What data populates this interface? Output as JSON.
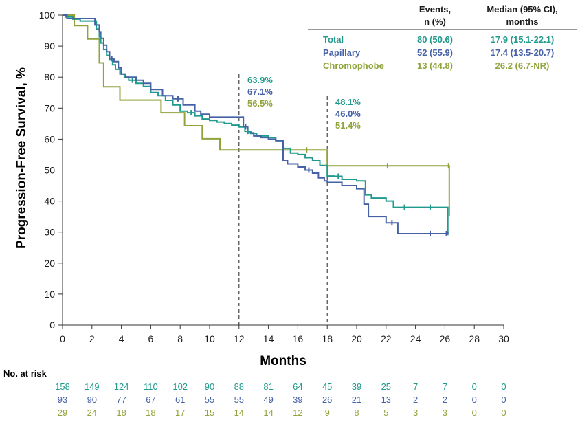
{
  "chart_data": {
    "type": "line",
    "xlabel": "Months",
    "ylabel": "Progression-Free Survival, %",
    "xlim": [
      0,
      30
    ],
    "ylim": [
      0,
      100
    ],
    "x_ticks": [
      "0",
      "2",
      "4",
      "6",
      "8",
      "10",
      "12",
      "14",
      "16",
      "18",
      "20",
      "22",
      "24",
      "26",
      "28",
      "30"
    ],
    "y_ticks": [
      "0",
      "10",
      "20",
      "30",
      "40",
      "50",
      "60",
      "70",
      "80",
      "90",
      "100"
    ],
    "legend": {
      "headers": [
        "Events,",
        "n (%)",
        "Median (95% CI),",
        "months"
      ],
      "rows": [
        {
          "name": "Total",
          "events": "80 (50.6)",
          "median": "17.9 (15.1-22.1)",
          "color": "#1f9a8c"
        },
        {
          "name": "Papillary",
          "events": "52 (55.9)",
          "median": "17.4 (13.5-20.7)",
          "color": "#4662a6"
        },
        {
          "name": "Chromophobe",
          "events": "13 (44.8)",
          "median": "26.2 (6.7-NR)",
          "color": "#8fa43a"
        }
      ]
    },
    "landmarks": [
      {
        "x": 12,
        "labels": [
          "63.9%",
          "67.1%",
          "56.5%"
        ]
      },
      {
        "x": 18,
        "labels": [
          "48.1%",
          "46.0%",
          "51.4%"
        ]
      }
    ],
    "series": [
      {
        "name": "Total",
        "color": "#1f9a8c",
        "x": [
          0,
          0.2,
          0.7,
          1.2,
          2.3,
          2.5,
          2.6,
          2.8,
          3.0,
          3.2,
          3.4,
          3.6,
          3.9,
          4.2,
          4.5,
          5.0,
          5.5,
          6.0,
          6.5,
          7.0,
          7.5,
          8.0,
          8.5,
          9.0,
          9.5,
          10.0,
          10.5,
          11.0,
          11.5,
          12.0,
          12.4,
          12.8,
          13.2,
          14.0,
          14.5,
          15.0,
          15.5,
          16.0,
          16.5,
          17.0,
          17.5,
          18.0,
          18.5,
          19.0,
          20.0,
          20.6,
          21.0,
          22.0,
          22.5,
          24.0,
          26.0,
          26.2
        ],
        "y": [
          100,
          99.4,
          98.7,
          98.1,
          95.5,
          93.0,
          91.0,
          88.9,
          87.0,
          85.5,
          84.0,
          82.5,
          81.0,
          80.0,
          79.0,
          78.0,
          77.0,
          75.0,
          74.0,
          72.5,
          71.0,
          69.0,
          68.5,
          67.5,
          66.5,
          66.0,
          65.5,
          65.0,
          64.5,
          63.9,
          62.5,
          61.8,
          61.0,
          60.5,
          59.5,
          57.0,
          55.5,
          55.0,
          54.0,
          53.0,
          51.5,
          48.1,
          48.0,
          47.0,
          46.5,
          42.0,
          41.0,
          40.0,
          38.0,
          38.0,
          38.0,
          29.0
        ]
      },
      {
        "name": "Papillary",
        "color": "#4662a6",
        "x": [
          0,
          0.3,
          2.2,
          2.5,
          2.6,
          2.8,
          3.0,
          3.2,
          3.5,
          3.8,
          4.0,
          4.3,
          5.0,
          5.5,
          6.0,
          6.8,
          7.5,
          8.2,
          9.0,
          9.4,
          10.0,
          12.0,
          12.3,
          12.6,
          13.0,
          13.5,
          14.0,
          14.5,
          15.0,
          15.3,
          16.0,
          16.5,
          17.0,
          17.4,
          17.8,
          18.0,
          19.0,
          20.0,
          20.5,
          20.8,
          22.0,
          22.8,
          24.0,
          26.0,
          26.2
        ],
        "y": [
          100,
          98.9,
          96.8,
          94.6,
          92.5,
          90.3,
          88.2,
          86.0,
          85.0,
          83.0,
          81.0,
          80.0,
          79.0,
          78.0,
          76.0,
          74.0,
          73.0,
          71.0,
          69.0,
          68.0,
          67.1,
          67.1,
          64.0,
          62.0,
          61.0,
          60.5,
          60.0,
          59.5,
          53.0,
          52.0,
          51.0,
          50.0,
          49.0,
          47.5,
          46.5,
          46.0,
          45.0,
          44.0,
          39.0,
          35.0,
          33.0,
          29.5,
          29.5,
          29.5,
          30.0
        ]
      },
      {
        "name": "Chromophobe",
        "color": "#8fa43a",
        "x": [
          0,
          0.8,
          1.7,
          2.5,
          2.8,
          3.9,
          6.7,
          8.3,
          9.5,
          10.7,
          12.0,
          15.2,
          18.0,
          26.2,
          26.3
        ],
        "y": [
          100,
          96.6,
          92.3,
          84.6,
          76.9,
          72.6,
          68.5,
          64.3,
          60.1,
          56.5,
          56.5,
          56.5,
          51.4,
          51.4,
          35.0
        ]
      }
    ],
    "at_risk": {
      "title": "No. at risk",
      "rows": [
        {
          "name": "Total",
          "color": "#1f9a8c",
          "values": [
            "158",
            "149",
            "124",
            "110",
            "102",
            "90",
            "88",
            "81",
            "64",
            "45",
            "39",
            "25",
            "7",
            "7",
            "0",
            "0"
          ]
        },
        {
          "name": "Papillary",
          "color": "#4662a6",
          "values": [
            "93",
            "90",
            "77",
            "67",
            "61",
            "55",
            "55",
            "49",
            "39",
            "26",
            "21",
            "13",
            "2",
            "2",
            "0",
            "0"
          ]
        },
        {
          "name": "Chromophobe",
          "color": "#8fa43a",
          "values": [
            "29",
            "24",
            "18",
            "18",
            "17",
            "15",
            "14",
            "14",
            "12",
            "9",
            "8",
            "5",
            "3",
            "3",
            "0",
            "0"
          ]
        }
      ]
    }
  }
}
